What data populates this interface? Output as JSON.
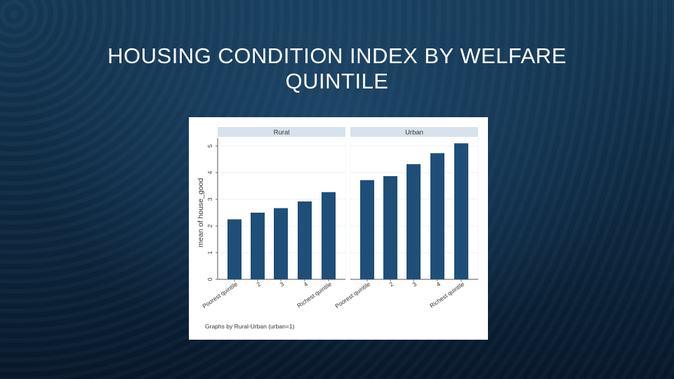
{
  "slide": {
    "title_line1": "HOUSING CONDITION INDEX BY WELFARE",
    "title_line2": "QUINTILE"
  },
  "chart_data": {
    "type": "bar",
    "ylabel": "mean of house_good",
    "ylim": [
      0,
      5
    ],
    "yticks": [
      "0",
      "1",
      "2",
      "3",
      "4",
      "5"
    ],
    "grid": true,
    "note": "Graphs by Rural-Urban (urban=1)",
    "bar_color": "#1f4e79",
    "categories": [
      "Poorest quintile",
      "2",
      "3",
      "4",
      "Richest quintile"
    ],
    "panels": [
      {
        "name": "Rural",
        "values": [
          2.25,
          2.5,
          2.67,
          2.92,
          3.27
        ]
      },
      {
        "name": "Urban",
        "values": [
          3.72,
          3.87,
          4.32,
          4.73,
          5.1
        ]
      }
    ]
  }
}
